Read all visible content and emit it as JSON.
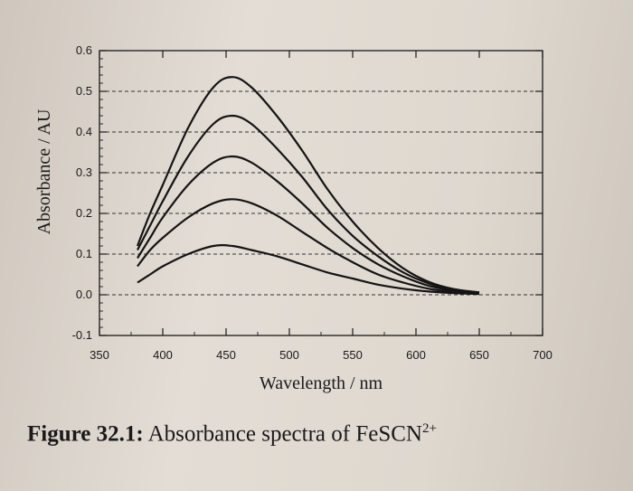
{
  "figure": {
    "label": "Figure 32.1:",
    "caption_text": "Absorbance spectra of FeSCN",
    "caption_superscript": "2+"
  },
  "chart_data": {
    "type": "line",
    "xlabel": "Wavelength / nm",
    "ylabel": "Absorbance / AU",
    "xlim": [
      350,
      700
    ],
    "ylim": [
      -0.1,
      0.6
    ],
    "xticks": [
      "350",
      "400",
      "450",
      "500",
      "550",
      "600",
      "650",
      "700"
    ],
    "yticks": [
      "-0.1",
      "0.0",
      "0.1",
      "0.2",
      "0.3",
      "0.4",
      "0.5",
      "0.6"
    ],
    "grid": "horizontal dashed",
    "line_color": "#141414",
    "series": [
      {
        "x": [
          380,
          390,
          400,
          420,
          440,
          455,
          470,
          490,
          510,
          530,
          550,
          570,
          590,
          610,
          630,
          650
        ],
        "y": [
          0.03,
          0.05,
          0.07,
          0.1,
          0.12,
          0.12,
          0.11,
          0.095,
          0.075,
          0.055,
          0.04,
          0.025,
          0.015,
          0.008,
          0.004,
          0.002
        ]
      },
      {
        "x": [
          380,
          390,
          400,
          420,
          440,
          455,
          470,
          490,
          510,
          530,
          550,
          570,
          590,
          610,
          630,
          650
        ],
        "y": [
          0.07,
          0.11,
          0.14,
          0.19,
          0.225,
          0.235,
          0.225,
          0.195,
          0.155,
          0.115,
          0.08,
          0.05,
          0.03,
          0.015,
          0.007,
          0.003
        ]
      },
      {
        "x": [
          380,
          390,
          400,
          420,
          440,
          455,
          470,
          490,
          510,
          530,
          550,
          570,
          590,
          610,
          630,
          650
        ],
        "y": [
          0.09,
          0.14,
          0.19,
          0.27,
          0.325,
          0.34,
          0.325,
          0.28,
          0.225,
          0.165,
          0.115,
          0.075,
          0.045,
          0.022,
          0.01,
          0.004
        ]
      },
      {
        "x": [
          380,
          390,
          400,
          420,
          440,
          455,
          470,
          490,
          510,
          530,
          550,
          570,
          590,
          610,
          630,
          650
        ],
        "y": [
          0.11,
          0.17,
          0.23,
          0.34,
          0.42,
          0.44,
          0.42,
          0.36,
          0.29,
          0.21,
          0.145,
          0.095,
          0.055,
          0.028,
          0.012,
          0.005
        ]
      },
      {
        "x": [
          380,
          390,
          400,
          420,
          440,
          455,
          470,
          490,
          510,
          530,
          550,
          570,
          590,
          610,
          630,
          650
        ],
        "y": [
          0.12,
          0.2,
          0.27,
          0.41,
          0.51,
          0.535,
          0.51,
          0.44,
          0.355,
          0.26,
          0.18,
          0.115,
          0.065,
          0.032,
          0.014,
          0.006
        ]
      }
    ]
  }
}
